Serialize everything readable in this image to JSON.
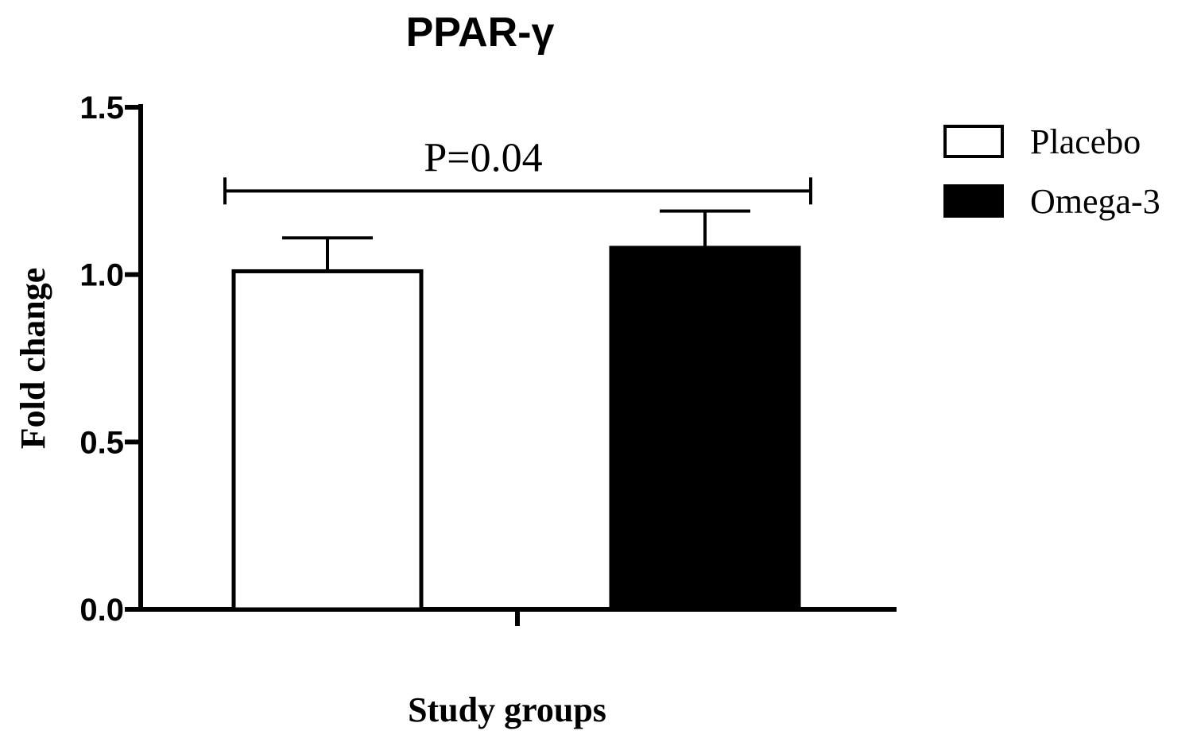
{
  "chart_data": {
    "type": "bar",
    "title": "PPAR-γ",
    "xlabel": "Study groups",
    "ylabel": "Fold change",
    "ylim": [
      0,
      1.5
    ],
    "yticks": [
      {
        "value": 0.0,
        "label": "0.0"
      },
      {
        "value": 0.5,
        "label": "0.5"
      },
      {
        "value": 1.0,
        "label": "1.0"
      },
      {
        "value": 1.5,
        "label": "1.5"
      }
    ],
    "grid": false,
    "legend_position": "right",
    "series": [
      {
        "name": "Placebo",
        "value": 1.01,
        "error": 0.1,
        "fill": "#ffffff",
        "stroke": "#000000"
      },
      {
        "name": "Omega-3",
        "value": 1.08,
        "error": 0.11,
        "fill": "#000000",
        "stroke": "#000000"
      }
    ],
    "annotations": [
      {
        "text": "P=0.04",
        "between": [
          "Placebo",
          "Omega-3"
        ],
        "y": 1.25
      }
    ]
  }
}
